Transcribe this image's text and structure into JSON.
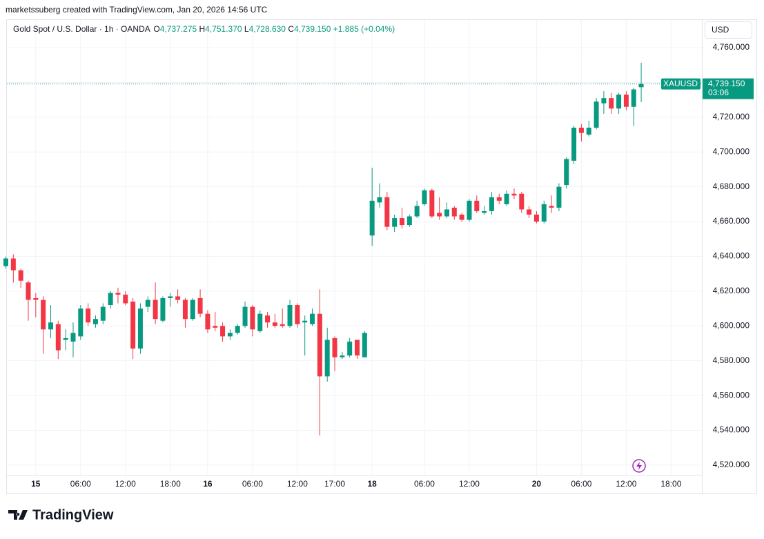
{
  "header": {
    "attribution": "marketssuberg created with TradingView.com, Jan 20, 2026 14:56 UTC",
    "symbol": "Gold Spot / U.S. Dollar · 1h · OANDA",
    "o_label": "O",
    "o_value": "4,737.275",
    "h_label": "H",
    "h_value": "4,751.370",
    "l_label": "L",
    "l_value": "4,728.630",
    "c_label": "C",
    "c_value": "4,739.150",
    "change": "+1.885 (+0.04%)",
    "currency": "USD",
    "logo": "TradingView"
  },
  "chart_data": {
    "type": "candlestick",
    "up_color": "#089981",
    "down_color": "#f23645",
    "grid": true,
    "categories": [
      null,
      null,
      null,
      null,
      "15",
      null,
      null,
      null,
      null,
      null,
      "06:00",
      null,
      null,
      null,
      null,
      null,
      "12:00",
      null,
      null,
      null,
      null,
      null,
      "18:00",
      null,
      null,
      null,
      null,
      "16",
      null,
      null,
      null,
      null,
      null,
      "06:00",
      null,
      null,
      null,
      null,
      null,
      "12:00",
      null,
      null,
      null,
      null,
      "17:00",
      null,
      null,
      null,
      null,
      "18",
      null,
      null,
      null,
      null,
      null,
      null,
      "06:00",
      null,
      null,
      null,
      null,
      null,
      "12:00",
      null,
      null,
      null,
      null,
      null,
      null,
      null,
      null,
      "20",
      null,
      null,
      null,
      null,
      null,
      "06:00",
      null,
      null,
      null,
      null,
      null,
      "12:00",
      null,
      null,
      null,
      null,
      null,
      "18:00"
    ],
    "open": [
      4634.4,
      4638.8,
      4632,
      4625,
      4616,
      4615,
      4598,
      4601,
      4592,
      4591,
      4594,
      4610,
      4601,
      4603,
      4612,
      4619,
      4618,
      4614,
      4587,
      4611,
      4615,
      4603,
      4616,
      4617,
      4615,
      4604,
      4616,
      4607,
      4600,
      4600,
      4594,
      4596,
      4600,
      4611,
      4597,
      4606,
      4602,
      4601,
      4600,
      4612,
      4602,
      4601,
      4607,
      4571,
      4593,
      4582,
      4583,
      4592,
      4582,
      4652,
      4671,
      4674,
      4657,
      4662,
      4658,
      4663,
      4670,
      4678,
      4665,
      4663,
      4668,
      4664,
      4661,
      4672,
      4665,
      4666,
      4674,
      4670,
      4676,
      4676,
      4667,
      4664,
      4660,
      4669,
      4668,
      4681,
      4695,
      4714,
      4710,
      4714,
      4728,
      4731,
      4725,
      4733,
      4726,
      4737.275,
      null,
      null,
      null,
      null
    ],
    "high": [
      4640,
      4641.2,
      4633,
      4626,
      4619,
      4617,
      4612,
      4603,
      4598,
      4602,
      4612,
      4613,
      4606,
      4613,
      4620,
      4622,
      4620,
      4616,
      4613,
      4617,
      4625,
      4617,
      4619,
      4621,
      4616,
      4616,
      4621,
      4609,
      4608,
      4602,
      4598,
      4601,
      4614,
      4612,
      4609,
      4608,
      4607,
      4610,
      4615,
      4613,
      4606,
      4610,
      4621,
      4599,
      4594,
      4585,
      4593,
      4592,
      4597,
      4691,
      4682,
      4677,
      4664,
      4668,
      4664,
      4672,
      4679,
      4679,
      4674,
      4671,
      4669,
      4665,
      4673,
      4675,
      4669,
      4677,
      4676,
      4678,
      4679,
      4677,
      4669,
      4666,
      4672,
      4675,
      4682,
      4697,
      4715,
      4716,
      4718,
      4731,
      4735,
      4734,
      4734,
      4735,
      4737,
      4751.37,
      null,
      null,
      null,
      null
    ],
    "low": [
      4633,
      4624.9,
      4622,
      4603,
      4605,
      4584,
      4593,
      4581,
      4586,
      4582,
      4592,
      4600,
      4599,
      4601,
      4610,
      4613,
      4612,
      4581,
      4584,
      4608,
      4601,
      4602,
      4611,
      4613,
      4599,
      4603,
      4605,
      4596,
      4597,
      4591,
      4592,
      4595,
      4599,
      4594,
      4596,
      4599,
      4599,
      4599,
      4599,
      4599,
      4583,
      4600,
      4537,
      4568,
      4574,
      4581,
      4582,
      4581,
      4582,
      4646,
      4668,
      4655,
      4654,
      4656,
      4657,
      4662,
      4669,
      4662,
      4661,
      4662,
      4661,
      4660,
      4660,
      4665,
      4664,
      4664,
      4670,
      4669,
      4673,
      4665,
      4662,
      4659,
      4659,
      4665,
      4666,
      4679,
      4693,
      4706,
      4709,
      4713,
      4722,
      4722,
      4722,
      4724,
      4715,
      4728.63,
      null,
      null,
      null,
      null
    ],
    "close": [
      4638.8,
      4632,
      4626,
      4615,
      4615,
      4598,
      4602,
      4586,
      4593,
      4596,
      4610,
      4602,
      4604,
      4611,
      4619,
      4618,
      4613,
      4587,
      4610,
      4615,
      4604,
      4616,
      4617,
      4615,
      4604,
      4615,
      4607,
      4598,
      4599,
      4594,
      4596,
      4600,
      4611,
      4598,
      4607,
      4602,
      4600,
      4600,
      4612,
      4601,
      4603,
      4607,
      4571,
      4592,
      4582,
      4583,
      4591,
      4583,
      4596,
      4672,
      4674,
      4657,
      4662,
      4658,
      4663,
      4669,
      4678,
      4663,
      4663,
      4667,
      4663,
      4661,
      4672,
      4666,
      4666,
      4674,
      4672,
      4676,
      4675,
      4667,
      4664,
      4660,
      4670,
      4668,
      4680,
      4696,
      4714,
      4711,
      4714,
      4729,
      4731,
      4725,
      4733,
      4726,
      4736,
      4739.15,
      null,
      null,
      null,
      null
    ],
    "ylim": [
      4514.4,
      4775.9
    ],
    "yticks": [
      {
        "value": 4520,
        "label": "4,520.000"
      },
      {
        "value": 4540,
        "label": "4,540.000"
      },
      {
        "value": 4560,
        "label": "4,560.000"
      },
      {
        "value": 4580,
        "label": "4,580.000"
      },
      {
        "value": 4600,
        "label": "4,600.000"
      },
      {
        "value": 4620,
        "label": "4,620.000"
      },
      {
        "value": 4640,
        "label": "4,640.000"
      },
      {
        "value": 4660,
        "label": "4,660.000"
      },
      {
        "value": 4680,
        "label": "4,680.000"
      },
      {
        "value": 4700,
        "label": "4,700.000"
      },
      {
        "value": 4720,
        "label": "4,720.000"
      },
      {
        "value": 4740,
        "label": "4,740.000"
      },
      {
        "value": 4760,
        "label": "4,760.000"
      }
    ],
    "last_price": {
      "value": 4739.15,
      "label": "4,739.150"
    },
    "last_price_name": "XAUUSD",
    "countdown": "03:06"
  }
}
